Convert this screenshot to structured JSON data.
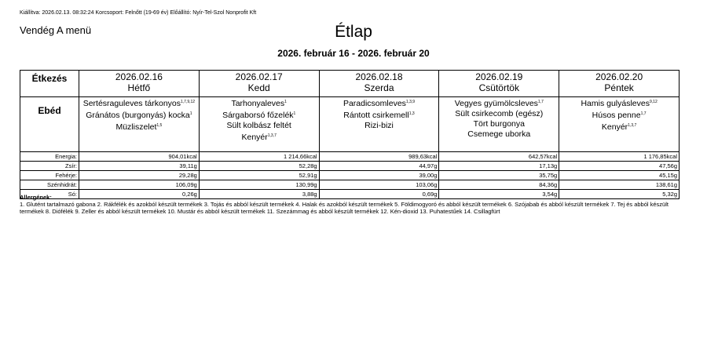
{
  "header": {
    "issued": "Kiállítva: 2026.02.13. 08:32:24 Korcsoport: Felnőtt (19-69 év) Előállító: Nyír-Tel-Szol Nonprofit Kft",
    "menu": "Vendég A menü",
    "title": "Étlap",
    "period": "2026. február 16 - 2026. február 20"
  },
  "table": {
    "corner": "Étkezés",
    "meal": "Ebéd",
    "days": [
      {
        "date": "2026.02.16",
        "name": "Hétfő"
      },
      {
        "date": "2026.02.17",
        "name": "Kedd"
      },
      {
        "date": "2026.02.18",
        "name": "Szerda"
      },
      {
        "date": "2026.02.19",
        "name": "Csütörtök"
      },
      {
        "date": "2026.02.20",
        "name": "Péntek"
      }
    ],
    "dishes": [
      [
        {
          "text": "Sertésraguleves tárkonyos",
          "allergens": "1,7,9,12"
        },
        {
          "text": "Gránátos (burgonyás) kocka",
          "allergens": "1"
        },
        {
          "text": "Müzliszelet",
          "allergens": "1,5"
        }
      ],
      [
        {
          "text": "Tarhonyaleves",
          "allergens": "1"
        },
        {
          "text": "Sárgaborsó főzelék",
          "allergens": "1"
        },
        {
          "text": "Sült kolbász feltét"
        },
        {
          "text": "Kenyér",
          "allergens": "1,3,7"
        }
      ],
      [
        {
          "text": "Paradicsomleves",
          "allergens": "1,3,9"
        },
        {
          "text": "Rántott csirkemell",
          "allergens": "1,3"
        },
        {
          "text": "Rizi-bizi"
        }
      ],
      [
        {
          "text": "Vegyes gyümölcsleves",
          "allergens": "1,7"
        },
        {
          "text": "Sült csirkecomb (egész)"
        },
        {
          "text": "Tört burgonya"
        },
        {
          "text": "Csemege uborka"
        }
      ],
      [
        {
          "text": "Hamis gulyásleves",
          "allergens": "9,12"
        },
        {
          "text": "Húsos penne",
          "allergens": "1,7"
        },
        {
          "text": "Kenyér",
          "allergens": "1,3,7"
        }
      ]
    ],
    "nutrition": [
      {
        "label": "Energia:",
        "values": [
          "904,01kcal",
          "1 214,66kcal",
          "989,63kcal",
          "642,57kcal",
          "1 176,85kcal"
        ]
      },
      {
        "label": "Zsír:",
        "values": [
          "39,11g",
          "52,28g",
          "44,97g",
          "17,13g",
          "47,56g"
        ]
      },
      {
        "label": "Fehérje:",
        "values": [
          "29,28g",
          "52,91g",
          "39,00g",
          "35,75g",
          "45,15g"
        ]
      },
      {
        "label": "Szénhidrát:",
        "values": [
          "106,09g",
          "130,99g",
          "103,06g",
          "84,36g",
          "138,61g"
        ]
      },
      {
        "label": "Só:",
        "values": [
          "0,26g",
          "3,88g",
          "0,69g",
          "3,54g",
          "5,32g"
        ]
      }
    ]
  },
  "allergens": {
    "title": "Allergének:",
    "text": "1. Glutént tartalmazó gabona 2. Rákfélék és azokból készült termékek 3. Tojás és abból készült termékek 4. Halak és azokból készült termékek 5. Földimogyoró és abból készült termékek 6. Szójabab és abból készült termékek 7. Tej és abból készült termékek 8. Diófélék 9. Zeller és abból készült termékek 10. Mustár és abból készült termékek 11. Szezámmag és abból készült termékek 12. Kén-dioxid 13. Puhatestűek 14. Csillagfürt"
  }
}
